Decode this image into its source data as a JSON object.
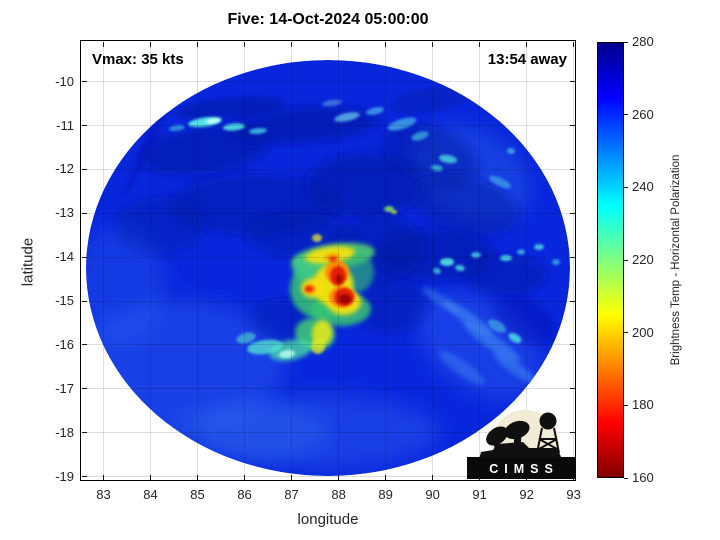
{
  "figure": {
    "title": "Five: 14-Oct-2024 05:00:00",
    "vmax_annotation": "Vmax: 35 kts",
    "eta_annotation": "13:54 away"
  },
  "axes": {
    "xlabel": "longitude",
    "ylabel": "latitude"
  },
  "colorbar_panel": {
    "label": "Brightness Temp - Horizontal Polarization"
  },
  "logo": {
    "banner_text": "CIMSS"
  },
  "chart_data": {
    "type": "heatmap",
    "title": "Five: 14-Oct-2024 05:00:00",
    "storm_name": "Five",
    "timestamp": "14-Oct-2024 05:00:00",
    "vmax_kts": 35,
    "time_offset_label": "13:54 away",
    "xlabel": "longitude",
    "ylabel": "latitude",
    "xlim": [
      82.5,
      93.05
    ],
    "ylim": [
      -19.1,
      -9.05
    ],
    "x_ticks": [
      83,
      84,
      85,
      86,
      87,
      88,
      89,
      90,
      91,
      92,
      93
    ],
    "y_ticks": [
      -10,
      -11,
      -12,
      -13,
      -14,
      -15,
      -16,
      -17,
      -18,
      -19
    ],
    "grid": true,
    "colorbar": {
      "label": "Brightness Temp - Horizontal Polarization",
      "range": [
        160,
        280
      ],
      "ticks": [
        280,
        260,
        240,
        220,
        200,
        180,
        160
      ],
      "colormap": "jet-reversed (280 = dark blue, 240 = cyan, 220 = green, 200 = yellow, 180 = red-orange, 160 = dark red)"
    },
    "swath": {
      "shape": "circular sensor footprint",
      "center_lon": 87.85,
      "center_lat": -14.25,
      "radius_lon_deg": 5.15,
      "radius_lat_deg": 4.75,
      "background_value_range": [
        262,
        276
      ]
    },
    "features": [
      {
        "name": "deepest convection core",
        "lon": 88.1,
        "lat": -14.9,
        "value_range": [
          160,
          180
        ]
      },
      {
        "name": "secondary cold core",
        "lon": 88.0,
        "lat": -14.4,
        "value_range": [
          165,
          190
        ]
      },
      {
        "name": "small cold speck west of core",
        "lon": 87.4,
        "lat": -14.7,
        "value_range": [
          175,
          195
        ]
      },
      {
        "name": "curved convective band (comma tail)",
        "lon_range": [
          86.4,
          88.6
        ],
        "lat_range": [
          -15.9,
          -13.9
        ],
        "value_range": [
          200,
          240
        ]
      },
      {
        "name": "cold cloud streaks north",
        "lon_range": [
          84.6,
          90.3
        ],
        "lat_range": [
          -11.2,
          -10.5
        ],
        "value_range": [
          232,
          250
        ]
      },
      {
        "name": "scattered cold specks northeast edge",
        "lon_range": [
          91.5,
          92.5
        ],
        "lat_range": [
          -13.1,
          -11.7
        ],
        "value_range": [
          238,
          250
        ]
      },
      {
        "name": "scattered cold specks east of center",
        "lon_range": [
          90.3,
          92.5
        ],
        "lat_range": [
          -14.8,
          -13.8
        ],
        "value_range": [
          238,
          250
        ]
      },
      {
        "name": "warm darker-blue mottling around core and north half",
        "value_range": [
          272,
          280
        ]
      }
    ]
  }
}
